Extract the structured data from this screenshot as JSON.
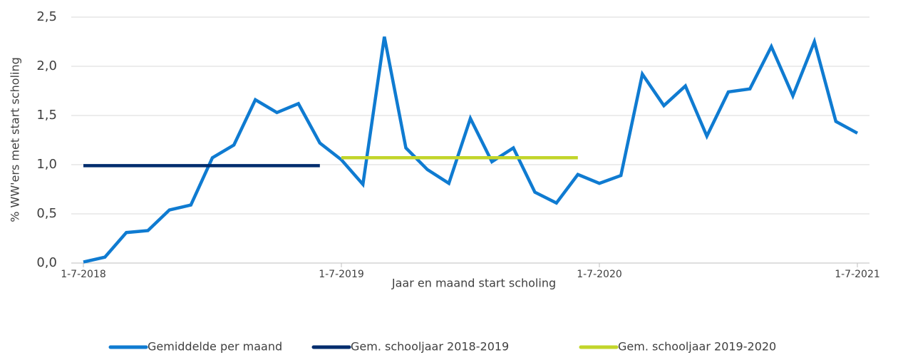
{
  "chart_data": {
    "type": "line",
    "y_label": "% WW'ers met start scholing",
    "x_label": "Jaar en maand start scholing",
    "x": [
      "1-7-2018",
      "1-8-2018",
      "1-9-2018",
      "1-10-2018",
      "1-11-2018",
      "1-12-2018",
      "1-1-2019",
      "1-2-2019",
      "1-3-2019",
      "1-4-2019",
      "1-5-2019",
      "1-6-2019",
      "1-7-2019",
      "1-8-2019",
      "1-9-2019",
      "1-10-2019",
      "1-11-2019",
      "1-12-2019",
      "1-1-2020",
      "1-2-2020",
      "1-3-2020",
      "1-4-2020",
      "1-5-2020",
      "1-6-2020",
      "1-7-2020",
      "1-8-2020",
      "1-9-2020",
      "1-10-2020",
      "1-11-2020",
      "1-12-2020",
      "1-1-2021",
      "1-2-2021",
      "1-3-2021",
      "1-4-2021",
      "1-5-2021",
      "1-6-2021",
      "1-7-2021"
    ],
    "series": [
      {
        "name": "Gemiddelde per maand",
        "color": "#0f7bd1",
        "values": [
          0.01,
          0.06,
          0.31,
          0.33,
          0.54,
          0.59,
          1.07,
          1.2,
          1.66,
          1.53,
          1.62,
          1.22,
          1.05,
          0.8,
          2.3,
          1.17,
          0.95,
          0.81,
          1.47,
          1.03,
          1.17,
          0.72,
          0.61,
          0.9,
          0.81,
          0.89,
          1.92,
          1.6,
          1.8,
          1.29,
          1.74,
          1.77,
          2.2,
          1.7,
          2.25,
          1.44,
          1.32
        ]
      },
      {
        "name": "Gem. schooljaar 2018-2019",
        "color": "#002d6e",
        "values": [
          0.99,
          0.99,
          0.99,
          0.99,
          0.99,
          0.99,
          0.99,
          0.99,
          0.99,
          0.99,
          0.99,
          0.99,
          null,
          null,
          null,
          null,
          null,
          null,
          null,
          null,
          null,
          null,
          null,
          null,
          null,
          null,
          null,
          null,
          null,
          null,
          null,
          null,
          null,
          null,
          null,
          null,
          null
        ]
      },
      {
        "name": "Gem. schooljaar 2019-2020",
        "color": "#c2d52a",
        "values": [
          null,
          null,
          null,
          null,
          null,
          null,
          null,
          null,
          null,
          null,
          null,
          null,
          1.07,
          1.07,
          1.07,
          1.07,
          1.07,
          1.07,
          1.07,
          1.07,
          1.07,
          1.07,
          1.07,
          1.07,
          null,
          null,
          null,
          null,
          null,
          null,
          null,
          null,
          null,
          null,
          null,
          null,
          null
        ]
      }
    ],
    "xlim": [
      "1-7-2018",
      "1-7-2021"
    ],
    "xticks": [
      "1-7-2018",
      "1-7-2019",
      "1-7-2020",
      "1-7-2021"
    ],
    "ylim": [
      0,
      2.5
    ],
    "yticks": [
      {
        "value": 0,
        "label": "0,0"
      },
      {
        "value": 0.5,
        "label": "0,5"
      },
      {
        "value": 1,
        "label": "1,0"
      },
      {
        "value": 1.5,
        "label": "1,5"
      },
      {
        "value": 2,
        "label": "2,0"
      },
      {
        "value": 2.5,
        "label": "2,5"
      }
    ],
    "grid": true,
    "legend": "bottom"
  }
}
